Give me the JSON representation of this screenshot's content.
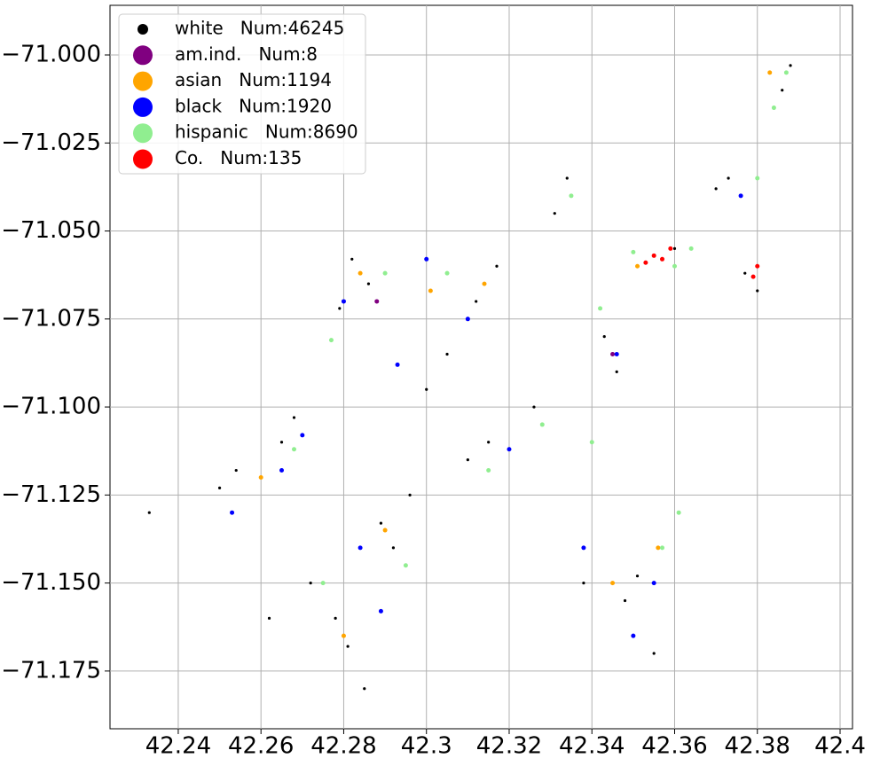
{
  "chart_data": {
    "type": "scatter",
    "xlim": [
      42.2235,
      42.403
    ],
    "ylim": [
      -71.1914,
      -70.9859
    ],
    "xticks": [
      42.24,
      42.26,
      42.28,
      42.3,
      42.32,
      42.34,
      42.36,
      42.38,
      42.4
    ],
    "xticks_labels_note_free": null,
    "yticks": [
      {
        "value": -71.0,
        "label": "−71.000"
      },
      {
        "value": -71.025,
        "label": "−71.025"
      },
      {
        "value": -71.05,
        "label": "−71.050"
      },
      {
        "value": -71.075,
        "label": "−71.075"
      },
      {
        "value": -71.1,
        "label": "−71.100"
      },
      {
        "value": -71.125,
        "label": "−71.125"
      },
      {
        "value": -71.15,
        "label": "−71.150"
      },
      {
        "value": -71.175,
        "label": "−71.175"
      }
    ],
    "grid": true,
    "legend": "upper left",
    "series": [
      {
        "name": "white   Num:46245",
        "color": "#000000",
        "x": [
          42.282,
          42.286,
          42.279,
          42.268,
          42.265,
          42.289,
          42.292,
          42.278,
          42.281,
          42.317,
          42.312,
          42.334,
          42.331,
          42.343,
          42.346,
          42.351,
          42.348,
          42.355,
          42.373,
          42.37,
          42.386,
          42.388,
          42.315,
          42.31,
          42.25,
          42.254,
          42.233,
          42.377,
          42.38,
          42.36,
          42.3,
          42.305,
          42.326,
          42.338,
          42.272,
          42.296,
          42.262,
          42.285
        ],
        "y": [
          -71.058,
          -71.065,
          -71.072,
          -71.103,
          -71.11,
          -71.133,
          -71.14,
          -71.16,
          -71.168,
          -71.06,
          -71.07,
          -71.035,
          -71.045,
          -71.08,
          -71.09,
          -71.148,
          -71.155,
          -71.17,
          -71.035,
          -71.038,
          -71.01,
          -71.003,
          -71.11,
          -71.115,
          -71.123,
          -71.118,
          -71.13,
          -71.062,
          -71.067,
          -71.055,
          -71.095,
          -71.085,
          -71.1,
          -71.15,
          -71.15,
          -71.125,
          -71.16,
          -71.18
        ]
      },
      {
        "name": "am.ind.   Num:8",
        "color": "#800080",
        "x": [
          42.288,
          42.345
        ],
        "y": [
          -71.07,
          -71.085
        ]
      },
      {
        "name": "asian   Num:1194",
        "color": "#ffa500",
        "x": [
          42.284,
          42.301,
          42.314,
          42.351,
          42.356,
          42.345,
          42.29,
          42.28,
          42.383,
          42.26
        ],
        "y": [
          -71.062,
          -71.067,
          -71.065,
          -71.06,
          -71.14,
          -71.15,
          -71.135,
          -71.165,
          -71.005,
          -71.12
        ]
      },
      {
        "name": "black   Num:1920",
        "color": "#0000ff",
        "x": [
          42.28,
          42.27,
          42.293,
          42.284,
          42.31,
          42.32,
          42.346,
          42.35,
          42.376,
          42.338,
          42.265,
          42.289,
          42.3,
          42.355,
          42.253
        ],
        "y": [
          -71.07,
          -71.108,
          -71.088,
          -71.14,
          -71.075,
          -71.112,
          -71.085,
          -71.165,
          -71.04,
          -71.14,
          -71.118,
          -71.158,
          -71.058,
          -71.15,
          -71.13
        ]
      },
      {
        "name": "hispanic   Num:8690",
        "color": "#90ee90",
        "x": [
          42.277,
          42.29,
          42.305,
          42.315,
          42.335,
          42.342,
          42.35,
          42.36,
          42.364,
          42.38,
          42.384,
          42.328,
          42.34,
          42.295,
          42.275,
          42.268,
          42.357,
          42.361,
          42.387
        ],
        "y": [
          -71.081,
          -71.062,
          -71.062,
          -71.118,
          -71.04,
          -71.072,
          -71.056,
          -71.06,
          -71.055,
          -71.035,
          -71.015,
          -71.105,
          -71.11,
          -71.145,
          -71.15,
          -71.112,
          -71.14,
          -71.13,
          -71.005
        ]
      },
      {
        "name": "Co.   Num:135",
        "color": "#ff0000",
        "x": [
          42.355,
          42.357,
          42.359,
          42.353,
          42.38,
          42.379
        ],
        "y": [
          -71.057,
          -71.058,
          -71.055,
          -71.059,
          -71.06,
          -71.063
        ]
      }
    ]
  }
}
